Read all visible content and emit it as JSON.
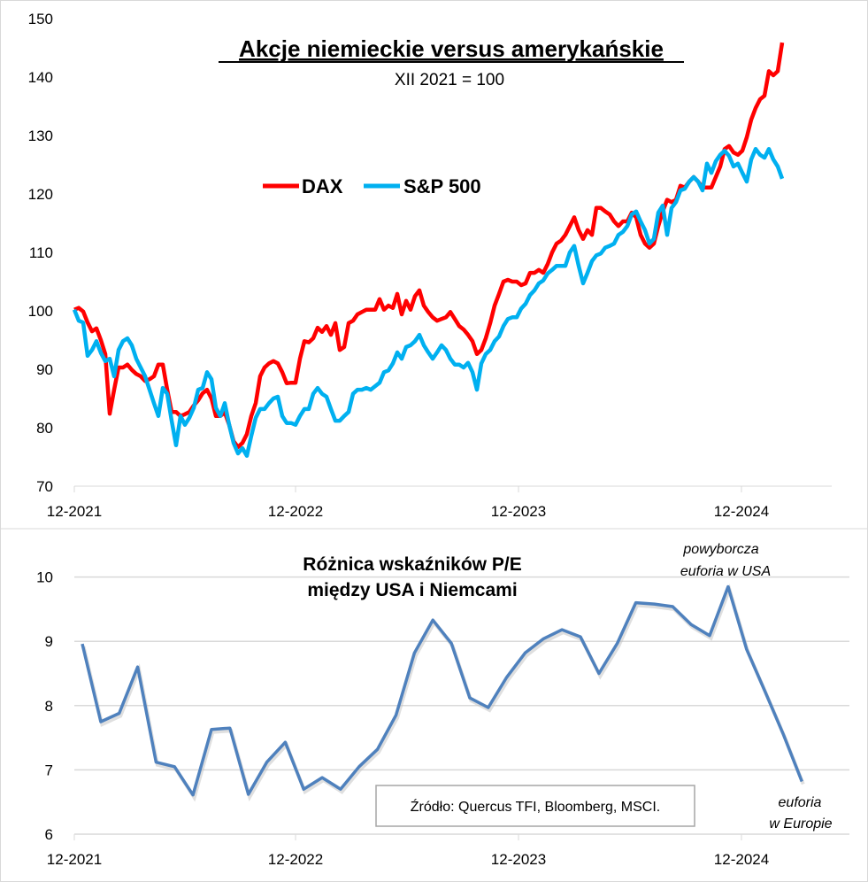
{
  "chart_data": [
    {
      "type": "line",
      "title": "Akcje niemieckie versus amerykańskie",
      "subtitle": "XII 2021 = 100",
      "xlabel": "",
      "ylabel": "",
      "x_ticks": [
        "12-2021",
        "12-2022",
        "12-2023",
        "12-2024"
      ],
      "y_ticks": [
        70,
        80,
        90,
        100,
        110,
        120,
        130,
        140,
        150
      ],
      "ylim": [
        70,
        150
      ],
      "x_start": "12-2021",
      "frequency": "weekly",
      "grid": false,
      "legend": "upper-center",
      "series": [
        {
          "name": "DAX",
          "color": "#ff0000",
          "values": [
            100.2,
            100.5,
            99.9,
            98,
            96.5,
            97,
            95,
            92.6,
            82.4,
            86.5,
            90.3,
            90.3,
            90.8,
            89.9,
            89.2,
            88.8,
            88,
            88.3,
            88.8,
            90.8,
            90.8,
            86.5,
            82.7,
            82.7,
            82,
            82.3,
            82.7,
            83.8,
            84.7,
            85.9,
            86.5,
            85,
            82,
            82,
            82.6,
            80.5,
            77.7,
            76.7,
            77.4,
            78.9,
            82,
            84.2,
            88.8,
            90.3,
            91,
            91.4,
            91,
            89.5,
            87.6,
            87.7,
            87.7,
            91.8,
            94.8,
            94.6,
            95.3,
            97.1,
            96.4,
            97.4,
            95.9,
            97.9,
            93.3,
            93.8,
            97.9,
            98.3,
            99.4,
            99.8,
            100.2,
            100.2,
            100.2,
            102,
            100.2,
            100.9,
            100.5,
            102.9,
            99.4,
            101.7,
            100.2,
            102.5,
            103.5,
            100.9,
            99.8,
            98.9,
            98.3,
            98.6,
            98.9,
            99.8,
            98.6,
            97.4,
            96.8,
            95.9,
            94.8,
            92.6,
            93.3,
            95.3,
            97.9,
            100.9,
            102.9,
            105,
            105.3,
            105,
            105,
            104.4,
            104.7,
            106.5,
            106.5,
            107,
            106.5,
            108,
            110,
            111.5,
            112,
            113,
            114.5,
            116,
            113.8,
            112.3,
            113.8,
            113,
            117.6,
            117.6,
            117,
            116.5,
            115.3,
            114.5,
            115.3,
            115.3,
            116.8,
            116,
            113,
            111.5,
            110.8,
            111.5,
            114.5,
            117,
            119,
            118.6,
            119,
            121.4,
            121.1,
            122.1,
            122.9,
            122.1,
            121.1,
            121.1,
            121.1,
            122.9,
            124.7,
            127.7,
            128.2,
            127.1,
            126.7,
            127.4,
            129.7,
            132.7,
            134.7,
            136.2,
            136.8,
            141,
            140.3,
            141,
            145.9
          ]
        },
        {
          "name": "S&P 500",
          "color": "#00b0f0",
          "values": [
            100.2,
            98.3,
            98,
            92.3,
            93.3,
            94.8,
            92.8,
            91.4,
            91.8,
            88.8,
            93.3,
            94.8,
            95.3,
            94.1,
            91.8,
            90.3,
            88.8,
            86.5,
            84.2,
            82,
            86.8,
            85.8,
            81.2,
            77,
            82,
            80.5,
            81.7,
            83.4,
            86.5,
            86.8,
            89.5,
            88.3,
            83.4,
            82,
            84.2,
            80.5,
            77.4,
            75.6,
            76.5,
            75.2,
            78.6,
            81.7,
            83.2,
            83.2,
            84.2,
            85,
            85.3,
            82,
            80.8,
            80.8,
            80.5,
            82,
            83.2,
            83.2,
            85.8,
            86.8,
            85.8,
            85.3,
            83.2,
            81.2,
            81.2,
            82,
            82.7,
            85.8,
            86.5,
            86.5,
            86.8,
            86.5,
            87.1,
            87.7,
            89.5,
            89.8,
            91,
            92.9,
            91.8,
            93.8,
            94.1,
            94.8,
            95.9,
            94.1,
            92.9,
            91.8,
            92.9,
            94.1,
            93.3,
            91.8,
            90.8,
            90.8,
            90.3,
            91.1,
            89.5,
            86.5,
            91,
            92.6,
            93.3,
            94.8,
            95.6,
            97.4,
            98.6,
            98.9,
            98.9,
            100.4,
            101.2,
            102.7,
            103.5,
            104.7,
            105.2,
            106.4,
            107,
            107.7,
            107.7,
            107.7,
            110,
            111.1,
            107.7,
            104.7,
            106.5,
            108.5,
            109.5,
            109.8,
            110.8,
            111.1,
            111.5,
            113,
            113.5,
            114.5,
            116.5,
            117,
            115.3,
            113.8,
            111.5,
            112.3,
            116.8,
            118,
            113,
            117.6,
            118.6,
            120.6,
            120.9,
            122.1,
            122.9,
            122.1,
            120.6,
            125.2,
            123.6,
            125.6,
            126.7,
            127.4,
            126.5,
            124.7,
            125.2,
            123.6,
            122.1,
            125.9,
            127.7,
            126.7,
            126.2,
            127.7,
            125.9,
            124.7,
            122.6
          ]
        }
      ]
    },
    {
      "type": "line",
      "title": "Różnica wskaźników P/E",
      "title_line2": "między USA i Niemcami",
      "xlabel": "",
      "ylabel": "",
      "x_ticks": [
        "12-2021",
        "12-2022",
        "12-2023",
        "12-2024"
      ],
      "y_ticks": [
        6,
        7,
        8,
        9,
        10
      ],
      "ylim": [
        6,
        10.5
      ],
      "x_start": "12-2021",
      "frequency": "monthly",
      "grid": true,
      "series": [
        {
          "color": "#4f81bd",
          "values": [
            8.96,
            7.75,
            7.88,
            8.6,
            7.12,
            7.05,
            6.61,
            7.63,
            7.65,
            6.62,
            7.12,
            7.43,
            6.7,
            6.88,
            6.7,
            7.05,
            7.32,
            7.85,
            8.82,
            9.33,
            8.97,
            8.12,
            7.97,
            8.44,
            8.82,
            9.04,
            9.18,
            9.07,
            8.5,
            8.97,
            9.6,
            9.58,
            9.54,
            9.26,
            9.09,
            9.85,
            8.88,
            8.22,
            7.55,
            6.82
          ]
        }
      ],
      "annotations": {
        "usa_line1": "powyborcza",
        "usa_line2": "euforia w USA",
        "europe_line1": "euforia",
        "europe_line2": "w Europie"
      },
      "source": "Źródło: Quercus TFI, Bloomberg, MSCI."
    }
  ]
}
